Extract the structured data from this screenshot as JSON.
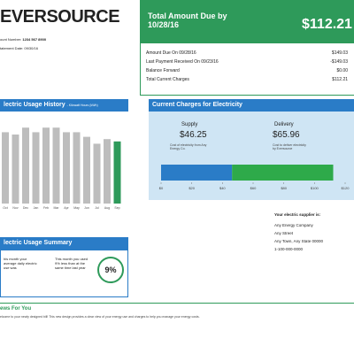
{
  "header": {
    "logo": "EVERSOURCE",
    "account_label": "ount Number:",
    "account_number": "1234 567 8900",
    "statement_label": "tatement Date:",
    "statement_date": "09/30/16"
  },
  "amount_due": {
    "title": "Total Amount Due by 10/28/16",
    "total": "$112.21",
    "rows": [
      [
        "Amount Due On 09/28/16",
        "$149.03"
      ],
      [
        "Last Payment Received On 09/23/16",
        "-$149.03"
      ],
      [
        "Balance Forward",
        "$0.00"
      ],
      [
        "Total Current Charges",
        "$112.21"
      ]
    ]
  },
  "usage_history": {
    "title": "lectric Usage History",
    "subtitle": "- Kilowatt Hours (kWh)",
    "months": [
      "Oct",
      "Nov",
      "Dec",
      "Jan",
      "Feb",
      "Mar",
      "Apr",
      "May",
      "Jun",
      "Jul",
      "Aug",
      "Sep"
    ],
    "values": [
      31,
      30,
      33,
      31,
      33,
      33,
      31,
      31,
      29,
      26,
      28,
      27
    ]
  },
  "usage_summary": {
    "title": "lectric Usage Summary",
    "left_text": "his month your average daily electric use was",
    "right_text": "This month you used 9% less than at the same time last year",
    "badge": "9%"
  },
  "charges": {
    "title": "Current Charges for Electricity",
    "supply_label": "Supply",
    "supply_amount": "$46.25",
    "supply_note": "Cost of electricity from Any Energy Co.",
    "delivery_label": "Delivery",
    "delivery_amount": "$65.96",
    "delivery_note": "Cost to deliver electricity by Eversource",
    "bar": {
      "supply": 46.25,
      "delivery": 65.96,
      "xlim": [
        0,
        120
      ],
      "xticks": [
        {
          "value": 0,
          "label": "$0"
        },
        {
          "value": 20,
          "label": "$20"
        },
        {
          "value": 40,
          "label": "$40"
        },
        {
          "value": 60,
          "label": "$60"
        },
        {
          "value": 80,
          "label": "$80"
        },
        {
          "value": 100,
          "label": "$100"
        },
        {
          "value": 120,
          "label": "$120"
        }
      ]
    }
  },
  "supplier": {
    "title": "Your electric supplier is:",
    "lines": [
      "Any Energy Company",
      "Any Street",
      "Any Town, Any State 00000",
      "1-100-000-0000"
    ]
  },
  "news": {
    "title": "ews For You",
    "text": "elcome to your newly designed bill! This new design provides a clear view of your energy use and charges to help you manage your energy costs."
  }
}
